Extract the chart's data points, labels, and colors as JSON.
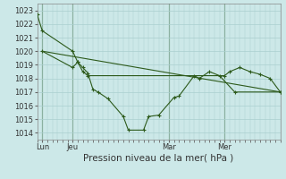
{
  "bg_color": "#cce8e8",
  "grid_color": "#aacfcf",
  "line_color": "#2d5a1b",
  "title": "Pression niveau de la mer( hPa )",
  "ylabel_ticks": [
    1014,
    1015,
    1016,
    1017,
    1018,
    1019,
    1020,
    1021,
    1022,
    1023
  ],
  "ylim": [
    1013.5,
    1023.5
  ],
  "xlim": [
    0,
    24
  ],
  "x_tick_positions": [
    0.5,
    3.5,
    13.0,
    18.5
  ],
  "x_tick_labels": [
    "Lun",
    "Jeu",
    "Mar",
    "Mer"
  ],
  "x_vline_positions": [
    0.5,
    3.5,
    13.0,
    18.5
  ],
  "series1_x": [
    0.0,
    0.5,
    3.5,
    4.0,
    4.5,
    5.0,
    5.5,
    6.0,
    7.0,
    8.5,
    9.0,
    10.5,
    11.0,
    12.0,
    13.5,
    14.0,
    15.5,
    16.0,
    17.0,
    18.0,
    19.5,
    24.0
  ],
  "series1_y": [
    1022.7,
    1021.5,
    1020.0,
    1019.2,
    1018.8,
    1018.4,
    1017.2,
    1017.0,
    1016.5,
    1015.2,
    1014.2,
    1014.2,
    1015.2,
    1015.3,
    1016.6,
    1016.7,
    1018.2,
    1018.0,
    1018.5,
    1018.2,
    1017.0,
    1017.0
  ],
  "series2_x": [
    0.5,
    3.5,
    4.0,
    4.5,
    5.0,
    18.5,
    19.0,
    20.0,
    21.0,
    22.0,
    23.0,
    24.0
  ],
  "series2_y": [
    1020.0,
    1018.8,
    1019.2,
    1018.5,
    1018.2,
    1018.2,
    1018.5,
    1018.8,
    1018.5,
    1018.3,
    1018.0,
    1017.0
  ],
  "series3_x": [
    0.5,
    24.0
  ],
  "series3_y": [
    1020.0,
    1017.0
  ]
}
